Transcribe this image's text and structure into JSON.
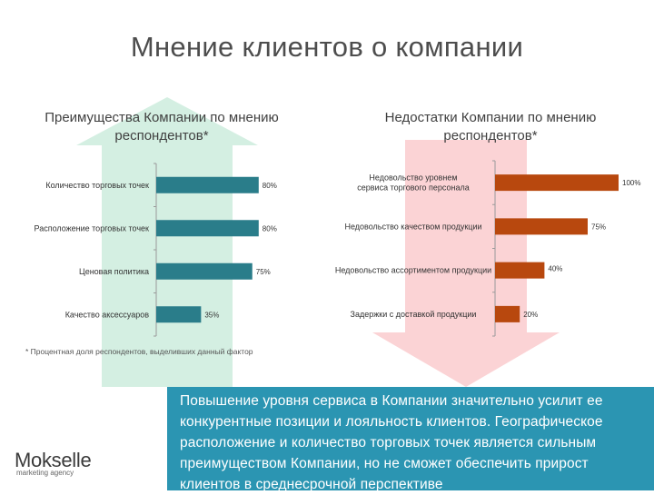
{
  "title": "Мнение клиентов о компании",
  "footnote": "* Процентная доля респондентов, выделивших данный фактор",
  "conclusion": "Повышение уровня сервиса в Компании значительно усилит ее конкурентные позиции и лояльность клиентов. Географическое расположение и количество торговых точек является сильным преимуществом Компании, но не сможет обеспечить прирост клиентов в среднесрочной перспективе",
  "logo": {
    "name": "Mokselle",
    "tagline": "marketing agency"
  },
  "colors": {
    "advantages": "#2a7d8a",
    "disadvantages": "#b8480e",
    "up_arrow": "#d4efe2",
    "down_arrow": "#fbd3d5",
    "conclusion_bg": "#2b95b2"
  },
  "chart_data": [
    {
      "type": "bar",
      "orientation": "horizontal",
      "title": "Преимущества Компании по мнению респондентов*",
      "categories": [
        "Количество торговых точек",
        "Расположение торговых точек",
        "Ценовая политика",
        "Качество аксессуаров"
      ],
      "values": [
        80,
        80,
        75,
        35
      ],
      "value_labels": [
        "80%",
        "80%",
        "75%",
        "35%"
      ],
      "xlim": [
        0,
        100
      ],
      "grid": false,
      "legend": "none"
    },
    {
      "type": "bar",
      "orientation": "horizontal",
      "title": "Недостатки Компании по мнению респондентов*",
      "categories": [
        "Недовольство уровнем сервиса торгового персонала",
        "Недовольство качеством продукции",
        "Недовольство ассортиментом продукции",
        "Задержки с доставкой продукции"
      ],
      "values": [
        100,
        75,
        40,
        20
      ],
      "value_labels": [
        "100%",
        "75%",
        "40%",
        "20%"
      ],
      "xlim": [
        0,
        100
      ],
      "grid": false,
      "legend": "none"
    }
  ]
}
